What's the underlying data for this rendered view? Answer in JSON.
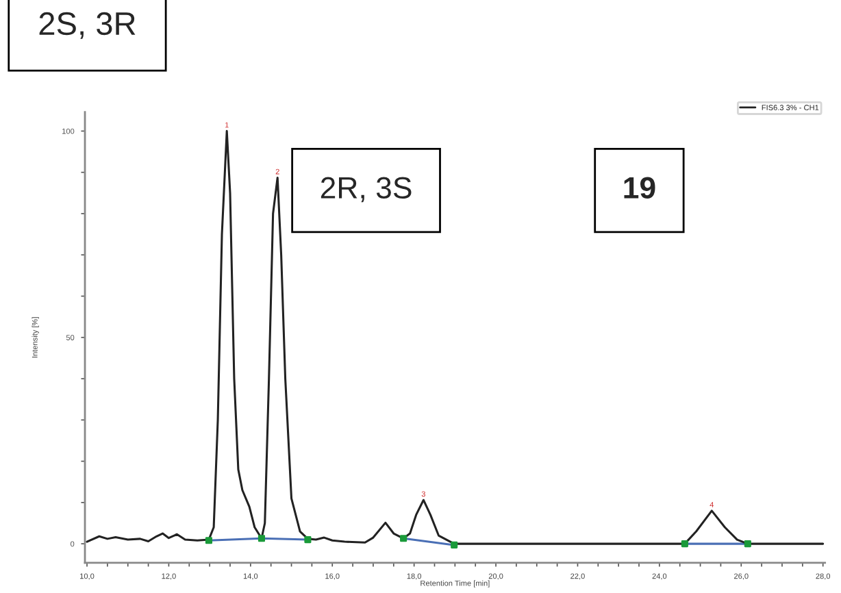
{
  "chart_data": {
    "type": "line",
    "xlabel": "Retention Time [min]",
    "ylabel": "Intensity [%]",
    "xlim": [
      9.95,
      28.05
    ],
    "ylim": [
      -4.6,
      104.6
    ],
    "xticks": [
      {
        "value": 10.0,
        "label": "10,0"
      },
      {
        "value": 10.5,
        "label": null
      },
      {
        "value": 11.0,
        "label": null
      },
      {
        "value": 11.5,
        "label": null
      },
      {
        "value": 12.0,
        "label": "12,0"
      },
      {
        "value": 12.5,
        "label": null
      },
      {
        "value": 13.0,
        "label": null
      },
      {
        "value": 13.5,
        "label": null
      },
      {
        "value": 14.0,
        "label": "14,0"
      },
      {
        "value": 14.5,
        "label": null
      },
      {
        "value": 15.0,
        "label": null
      },
      {
        "value": 15.5,
        "label": null
      },
      {
        "value": 16.0,
        "label": "16,0"
      },
      {
        "value": 16.5,
        "label": null
      },
      {
        "value": 17.0,
        "label": null
      },
      {
        "value": 17.5,
        "label": null
      },
      {
        "value": 18.0,
        "label": "18,0"
      },
      {
        "value": 18.5,
        "label": null
      },
      {
        "value": 19.0,
        "label": null
      },
      {
        "value": 19.5,
        "label": null
      },
      {
        "value": 20.0,
        "label": "20,0"
      },
      {
        "value": 20.5,
        "label": null
      },
      {
        "value": 21.0,
        "label": null
      },
      {
        "value": 21.5,
        "label": null
      },
      {
        "value": 22.0,
        "label": "22,0"
      },
      {
        "value": 22.5,
        "label": null
      },
      {
        "value": 23.0,
        "label": null
      },
      {
        "value": 23.5,
        "label": null
      },
      {
        "value": 24.0,
        "label": "24,0"
      },
      {
        "value": 24.5,
        "label": null
      },
      {
        "value": 25.0,
        "label": null
      },
      {
        "value": 25.5,
        "label": null
      },
      {
        "value": 26.0,
        "label": "26,0"
      },
      {
        "value": 26.5,
        "label": null
      },
      {
        "value": 27.0,
        "label": null
      },
      {
        "value": 27.5,
        "label": null
      },
      {
        "value": 28.0,
        "label": "28,0"
      }
    ],
    "yticks": [
      0,
      {
        "value": 10,
        "label": null
      },
      {
        "value": 20,
        "label": null
      },
      {
        "value": 30,
        "label": null
      },
      {
        "value": 40,
        "label": null
      },
      50,
      {
        "value": 60,
        "label": null
      },
      {
        "value": 70,
        "label": null
      },
      {
        "value": 80,
        "label": null
      },
      {
        "value": 90,
        "label": null
      },
      100
    ],
    "grid": false,
    "legend": "top right",
    "series": [
      {
        "name": "FIS6.3 3% - CH1",
        "color": "#222222",
        "x": [
          10.0,
          10.3,
          10.5,
          10.7,
          11.0,
          11.3,
          11.5,
          11.7,
          11.85,
          12.0,
          12.2,
          12.4,
          12.7,
          12.98,
          13.1,
          13.2,
          13.3,
          13.42,
          13.5,
          13.6,
          13.7,
          13.8,
          13.97,
          14.1,
          14.27,
          14.35,
          14.45,
          14.55,
          14.66,
          14.75,
          14.85,
          15.0,
          15.21,
          15.4,
          15.6,
          15.8,
          16.0,
          16.3,
          16.8,
          17.0,
          17.3,
          17.5,
          17.74,
          17.9,
          18.05,
          18.23,
          18.4,
          18.6,
          18.98,
          20.0,
          22.0,
          24.62,
          24.9,
          25.28,
          25.6,
          25.9,
          26.16,
          28.0
        ],
        "values": [
          0.5,
          1.8,
          1.2,
          1.6,
          1.0,
          1.2,
          0.6,
          1.8,
          2.5,
          1.4,
          2.3,
          1.0,
          0.8,
          1.0,
          4,
          30,
          75,
          100,
          85,
          40,
          18,
          13,
          9,
          4,
          1.3,
          5,
          40,
          80,
          88.7,
          70,
          40,
          11,
          3,
          1.2,
          1.0,
          1.5,
          0.8,
          0.5,
          0.3,
          1.5,
          5.1,
          2.5,
          1.3,
          2.5,
          7,
          10.6,
          7,
          2,
          0,
          0,
          0,
          0,
          3,
          8,
          4,
          1,
          0,
          0
        ]
      },
      {
        "color": "#4a6fb5",
        "x": [
          12.98,
          14.27,
          15.4,
          16.5,
          17.74,
          18.98,
          21.0,
          24.62,
          26.16
        ],
        "values": [
          0.8,
          1.3,
          1.0,
          null,
          1.3,
          -0.3,
          null,
          0,
          0
        ]
      },
      {
        "color": "#1a9a3a",
        "type": "scatter",
        "marker": "square",
        "x": [
          12.98,
          14.27,
          15.4,
          17.74,
          18.98,
          24.62,
          26.16
        ],
        "values": [
          0.8,
          1.3,
          1.0,
          1.3,
          -0.3,
          0,
          0
        ]
      }
    ],
    "annotations": [
      "2S, 3R",
      "2R, 3S",
      "19",
      {
        "text": "1",
        "x": 13.42,
        "y": 100
      },
      {
        "text": "2",
        "x": 14.66,
        "y": 88.7
      },
      {
        "text": "3",
        "x": 18.23,
        "y": 10.6
      },
      {
        "text": "4",
        "x": 25.28,
        "y": 8
      }
    ]
  }
}
